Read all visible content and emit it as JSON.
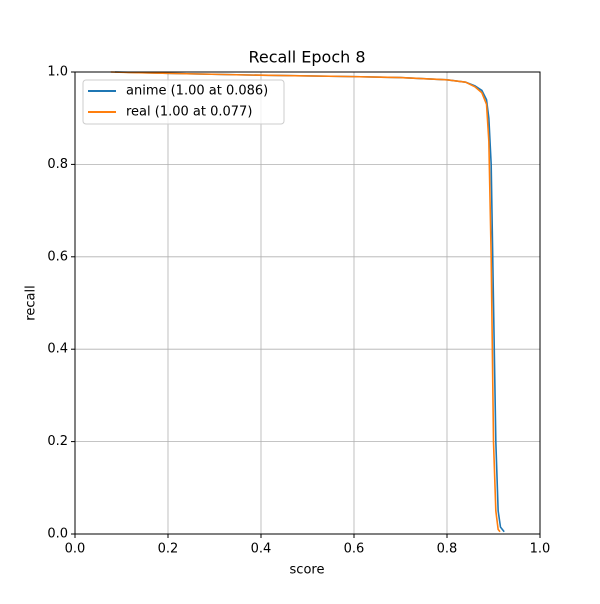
{
  "chart_data": {
    "type": "line",
    "title": "Recall Epoch 8",
    "xlabel": "score",
    "ylabel": "recall",
    "xlim": [
      0,
      1
    ],
    "ylim": [
      0,
      1
    ],
    "xticks": [
      {
        "value": 0,
        "label": "0.0"
      },
      0.2,
      0.4,
      0.6,
      0.8,
      {
        "value": 1,
        "label": "1.0"
      }
    ],
    "yticks": [
      {
        "value": 0,
        "label": "0.0"
      },
      0.2,
      0.4,
      0.6,
      0.8,
      {
        "value": 1,
        "label": "1.0"
      }
    ],
    "grid": true,
    "legend": "upper left",
    "series": [
      {
        "name": "anime (1.00 at 0.086)",
        "color": "#1f77b4",
        "x": [
          0.086,
          0.2,
          0.4,
          0.6,
          0.7,
          0.8,
          0.84,
          0.86,
          0.875,
          0.885,
          0.89,
          0.895,
          0.9,
          0.905,
          0.91,
          0.915,
          0.923
        ],
        "values": [
          1.0,
          0.997,
          0.993,
          0.99,
          0.988,
          0.983,
          0.978,
          0.97,
          0.96,
          0.94,
          0.9,
          0.8,
          0.5,
          0.2,
          0.05,
          0.015,
          0.005
        ]
      },
      {
        "name": "real (1.00 at 0.077)",
        "color": "#ff7f0e",
        "x": [
          0.077,
          0.2,
          0.4,
          0.6,
          0.7,
          0.8,
          0.84,
          0.86,
          0.875,
          0.885,
          0.89,
          0.895,
          0.9,
          0.905,
          0.91,
          0.914
        ],
        "values": [
          1.0,
          0.997,
          0.993,
          0.99,
          0.988,
          0.983,
          0.978,
          0.968,
          0.955,
          0.93,
          0.85,
          0.6,
          0.2,
          0.05,
          0.01,
          0.005
        ]
      }
    ]
  }
}
